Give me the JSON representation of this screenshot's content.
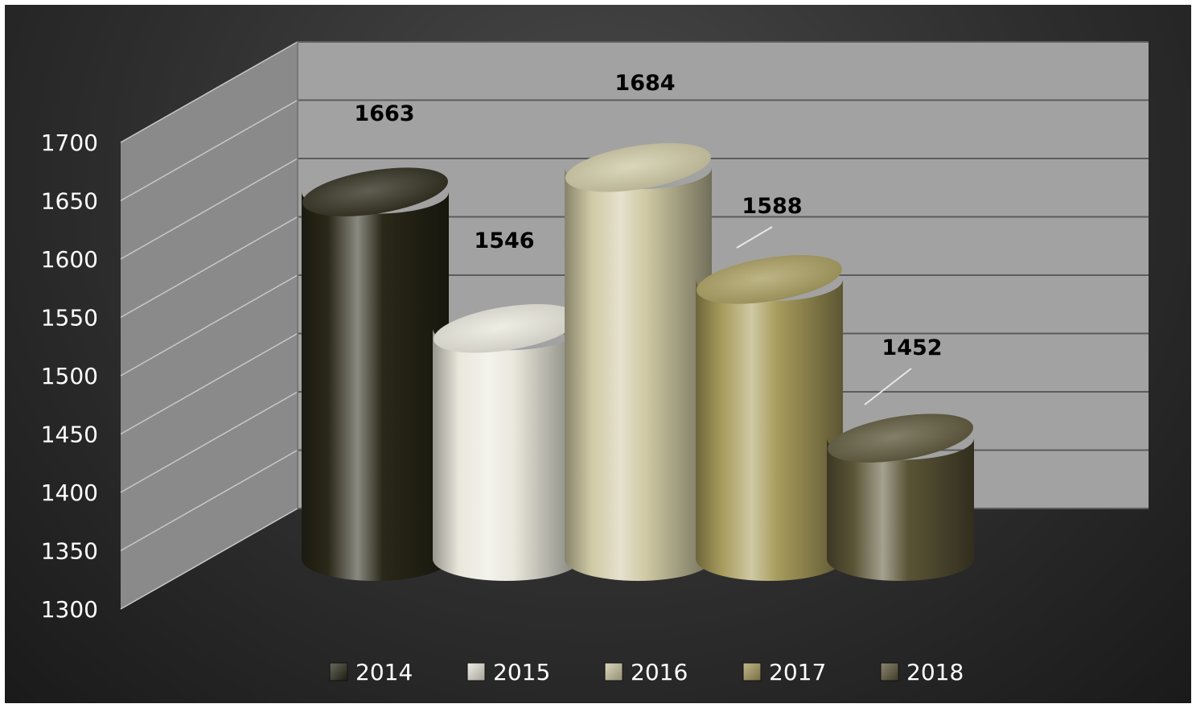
{
  "chart_data": {
    "type": "bar",
    "style": "3d-cylinder",
    "categories": [
      "2014",
      "2015",
      "2016",
      "2017",
      "2018"
    ],
    "values": [
      1663,
      1546,
      1684,
      1588,
      1452
    ],
    "title": "",
    "xlabel": "",
    "ylabel": "",
    "ylim": [
      1300,
      1700
    ],
    "yticks": [
      1300,
      1350,
      1400,
      1450,
      1500,
      1550,
      1600,
      1650,
      1700
    ],
    "grid": true,
    "legend_position": "bottom",
    "colors": [
      "#2a2818",
      "#eae8dc",
      "#cfc9a4",
      "#a89c5c",
      "#5a5436"
    ]
  }
}
